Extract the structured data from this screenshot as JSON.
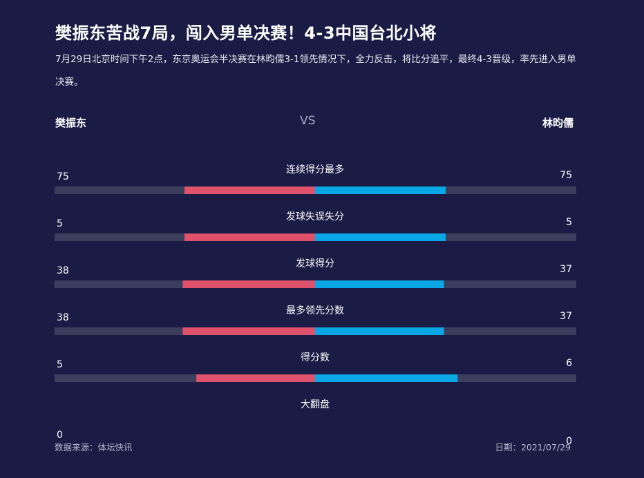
{
  "header": {
    "title": "樊振东苦战7局，闯入男单决赛！4-3中国台北小将",
    "subtitle": "7月29日北京时间下午2点，东京奥运会半决赛在林昀儒3-1领先情况下，全力反击，将比分追平，最终4-3晋级，率先进入男单决赛。"
  },
  "players": {
    "left": "樊振东",
    "vs": "VS",
    "right": "林昀儒"
  },
  "colors": {
    "background": "#1b1c45",
    "track": "#3c3e5e",
    "left_bar": "#e0516b",
    "right_bar": "#0aa7e6"
  },
  "chart_data": {
    "type": "bar",
    "categories": [
      "连续得分最多",
      "发球失误失分",
      "发球得分",
      "最多领先分数",
      "得分数",
      "大翻盘"
    ],
    "series": [
      {
        "name": "樊振东",
        "values": [
          75,
          5,
          38,
          38,
          5,
          0
        ]
      },
      {
        "name": "林昀儒",
        "values": [
          75,
          5,
          37,
          37,
          6,
          0
        ]
      }
    ]
  },
  "footer": {
    "source": "数据来源：体坛快讯",
    "date": "日期：2021/07/29"
  }
}
